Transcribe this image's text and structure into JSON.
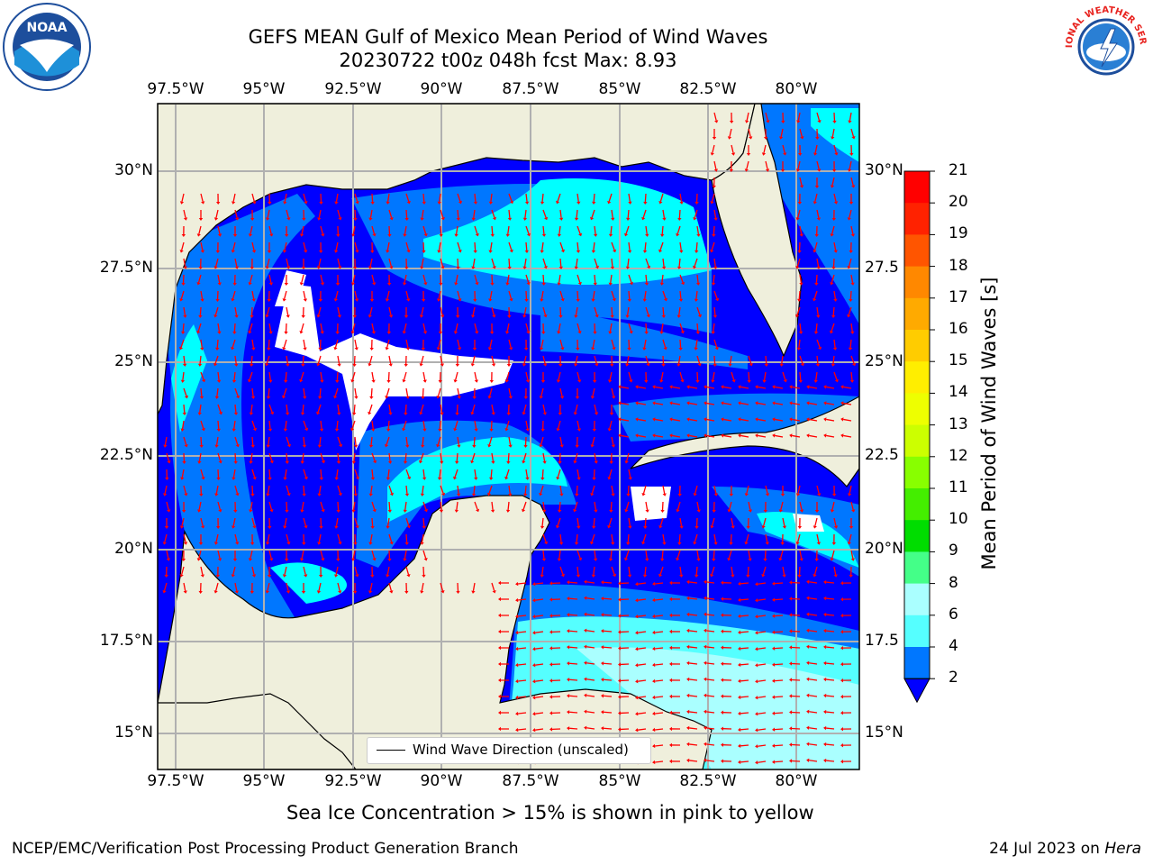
{
  "title_line1": "GEFS MEAN Gulf of Mexico Mean Period of Wind Waves",
  "title_line2": "20230722 t00z 048h fcst   Max: 8.93",
  "lon_ticks": [
    "97.5°W",
    "95°W",
    "92.5°W",
    "90°W",
    "87.5°W",
    "85°W",
    "82.5°W",
    "80°W"
  ],
  "lat_ticks_left": [
    "30°N",
    "27.5°N",
    "25°N",
    "22.5°N",
    "20°N",
    "17.5°N",
    "15°N"
  ],
  "lat_ticks_right": [
    "30°N",
    "27.5",
    "25°N",
    "22.5",
    "20°N",
    "17.5",
    "15°N"
  ],
  "legend_label": "Wind Wave Direction (unscaled)",
  "colorbar": {
    "title": "Mean Period of Wind Waves [s]",
    "labels": [
      "21",
      "20",
      "19",
      "18",
      "17",
      "16",
      "15",
      "14",
      "13",
      "12",
      "11",
      "10",
      "9",
      "8",
      "6",
      "4",
      "2"
    ],
    "colors": [
      "#ff0000",
      "#ff2200",
      "#ff5500",
      "#ff8800",
      "#ffaa00",
      "#ffcc00",
      "#ffee00",
      "#eeff00",
      "#ccff00",
      "#88ff00",
      "#44ee00",
      "#00dd00",
      "#44ff88",
      "#aaffff",
      "#55ffff",
      "#00ffff",
      "#0077ff"
    ],
    "extend_color": "#0000ff"
  },
  "note": "Sea Ice Concentration > 15% is shown in pink to yellow",
  "footer_left": "NCEP/EMC/Verification Post Processing Product Generation Branch",
  "footer_right_prefix": "24 Jul 2023 on ",
  "footer_right_host": "Hera",
  "logos": {
    "left": "NOAA",
    "right": "NATIONAL WEATHER SERVICE"
  },
  "colors": {
    "land": "#efefdc",
    "arrow": "#ff0000",
    "grid": "#b0b0b0"
  }
}
